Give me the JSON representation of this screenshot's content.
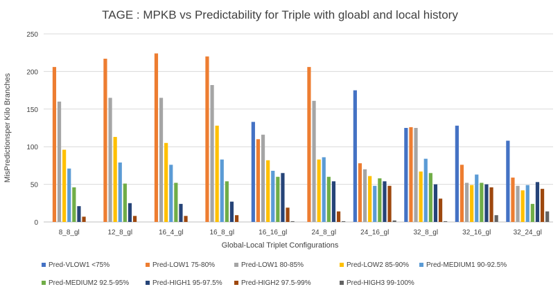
{
  "chart_data": {
    "type": "bar",
    "title": "TAGE : MPKB vs Predictability for Triple with gloabl and local history",
    "xlabel": "Global-Local Triplet Configurations",
    "ylabel": "MisPredictionsper Kilo Branches",
    "ylim": [
      0,
      250
    ],
    "yticks": [
      0,
      50,
      100,
      150,
      200,
      250
    ],
    "grid": true,
    "legend_position": "bottom",
    "categories": [
      "8_8_gl",
      "12_8_gl",
      "16_4_gl",
      "16_8_gl",
      "16_16_gl",
      "24_8_gl",
      "24_16_gl",
      "32_8_gl",
      "32_16_gl",
      "32_24_gl"
    ],
    "series": [
      {
        "name": "Pred-VLOW1 <75%",
        "color": "#4472c4",
        "values": [
          0,
          0,
          0,
          0,
          133,
          0,
          175,
          125,
          128,
          108
        ]
      },
      {
        "name": "Pred-LOW1 75-80%",
        "color": "#ed7d31",
        "values": [
          206,
          217,
          224,
          220,
          110,
          206,
          78,
          126,
          76,
          59
        ]
      },
      {
        "name": "Pred-LOW1 80-85%",
        "color": "#a5a5a5",
        "values": [
          160,
          165,
          165,
          182,
          116,
          161,
          70,
          125,
          52,
          48
        ]
      },
      {
        "name": "Pred-LOW2 85-90%",
        "color": "#ffc000",
        "values": [
          96,
          113,
          105,
          128,
          82,
          83,
          61,
          67,
          49,
          42
        ]
      },
      {
        "name": "Pred-MEDIUM1 90-92.5%",
        "color": "#5b9bd5",
        "values": [
          71,
          79,
          76,
          83,
          68,
          86,
          48,
          84,
          63,
          49
        ]
      },
      {
        "name": "Pred-MEDIUM2 92.5-95%",
        "color": "#70ad47",
        "values": [
          46,
          51,
          52,
          54,
          60,
          60,
          58,
          65,
          52,
          24
        ]
      },
      {
        "name": "Pred-HIGH1 95-97.5%",
        "color": "#264478",
        "values": [
          21,
          25,
          24,
          27,
          65,
          54,
          54,
          50,
          50,
          53
        ]
      },
      {
        "name": "Pred-HIGH2 97.5-99%",
        "color": "#9e480e",
        "values": [
          7,
          8,
          8,
          9,
          19,
          14,
          48,
          31,
          46,
          44
        ]
      },
      {
        "name": "Pred-HIGH3 99-100%",
        "color": "#636363",
        "values": [
          0,
          0,
          0,
          0,
          1,
          1,
          2,
          1,
          9,
          14
        ]
      }
    ]
  }
}
